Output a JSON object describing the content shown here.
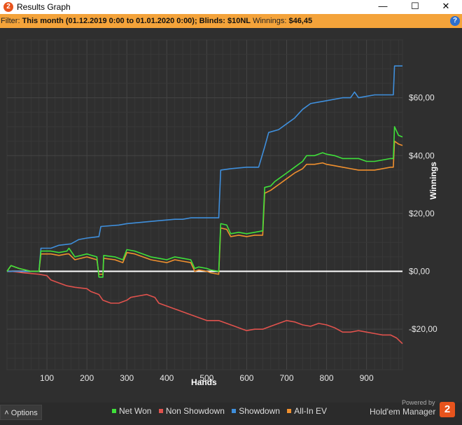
{
  "window": {
    "title": "Results Graph",
    "app_icon_label": "2",
    "minimize": "—",
    "maximize": "☐",
    "close": "✕"
  },
  "filter": {
    "label": "Filter:",
    "value": "This month (01.12.2019 0:00 to 01.01.2020 0:00); Blinds: $10NL",
    "winnings_label": "Winnings:",
    "winnings_value": "$46,45",
    "help": "?"
  },
  "footer": {
    "options_label": "Options",
    "powered_by": "Powered by",
    "brand_name": "Hold'em Manager",
    "brand_logo": "2"
  },
  "colors": {
    "net_won": "#3fe03a",
    "non_showdown": "#e0524d",
    "showdown": "#3f8fdc",
    "all_in_ev": "#f0902e",
    "zero_line": "#ffffff",
    "grid": "#3e3e3e",
    "background": "#2f2f2f"
  },
  "chart_data": {
    "type": "line",
    "xlabel": "Hands",
    "ylabel": "Winnings",
    "xlim": [
      0,
      990
    ],
    "ylim": [
      -34,
      80
    ],
    "x_ticks": [
      100,
      200,
      300,
      400,
      500,
      600,
      700,
      800,
      900
    ],
    "x_tick_labels": [
      "100",
      "200",
      "300",
      "400",
      "500",
      "600",
      "700",
      "800",
      "900"
    ],
    "y_ticks": [
      -20,
      0,
      20,
      40,
      60
    ],
    "y_tick_labels": [
      "-$20,00",
      "$0,00",
      "$20,00",
      "$40,00",
      "$60,00"
    ],
    "grid": true,
    "legend_position": "bottom",
    "series": [
      {
        "name": "Net Won",
        "color": "#3fe03a",
        "points": [
          [
            0,
            0
          ],
          [
            10,
            2
          ],
          [
            30,
            1
          ],
          [
            60,
            0
          ],
          [
            80,
            0
          ],
          [
            85,
            7
          ],
          [
            110,
            7
          ],
          [
            130,
            6.5
          ],
          [
            150,
            7
          ],
          [
            155,
            8
          ],
          [
            170,
            5
          ],
          [
            200,
            6
          ],
          [
            225,
            5
          ],
          [
            230,
            -2
          ],
          [
            240,
            -2
          ],
          [
            242,
            5.5
          ],
          [
            270,
            5
          ],
          [
            290,
            4
          ],
          [
            300,
            7.5
          ],
          [
            320,
            7
          ],
          [
            340,
            6
          ],
          [
            360,
            5
          ],
          [
            380,
            4.5
          ],
          [
            400,
            4
          ],
          [
            420,
            5
          ],
          [
            440,
            4.5
          ],
          [
            460,
            4
          ],
          [
            470,
            1
          ],
          [
            480,
            1.5
          ],
          [
            500,
            1
          ],
          [
            510,
            0.5
          ],
          [
            530,
            0
          ],
          [
            535,
            16.5
          ],
          [
            550,
            16
          ],
          [
            560,
            13
          ],
          [
            580,
            13.5
          ],
          [
            600,
            13
          ],
          [
            620,
            13.5
          ],
          [
            640,
            14
          ],
          [
            645,
            29
          ],
          [
            660,
            29.5
          ],
          [
            670,
            31
          ],
          [
            680,
            32
          ],
          [
            700,
            34
          ],
          [
            720,
            36
          ],
          [
            740,
            38
          ],
          [
            750,
            40
          ],
          [
            770,
            40
          ],
          [
            790,
            41
          ],
          [
            800,
            40.5
          ],
          [
            820,
            40
          ],
          [
            840,
            39
          ],
          [
            860,
            39
          ],
          [
            880,
            39
          ],
          [
            900,
            38
          ],
          [
            920,
            38
          ],
          [
            940,
            38.5
          ],
          [
            960,
            39
          ],
          [
            967,
            39
          ],
          [
            970,
            50
          ],
          [
            980,
            47
          ],
          [
            990,
            46.45
          ]
        ]
      },
      {
        "name": "Non Showdown",
        "color": "#e0524d",
        "points": [
          [
            0,
            0
          ],
          [
            10,
            0
          ],
          [
            40,
            -0.5
          ],
          [
            80,
            -1
          ],
          [
            100,
            -1.5
          ],
          [
            110,
            -3
          ],
          [
            130,
            -4
          ],
          [
            150,
            -5
          ],
          [
            170,
            -5.5
          ],
          [
            200,
            -6
          ],
          [
            210,
            -7
          ],
          [
            220,
            -7.5
          ],
          [
            230,
            -8
          ],
          [
            240,
            -10
          ],
          [
            260,
            -11
          ],
          [
            280,
            -11
          ],
          [
            300,
            -10
          ],
          [
            310,
            -9
          ],
          [
            330,
            -8.5
          ],
          [
            350,
            -8
          ],
          [
            370,
            -9
          ],
          [
            380,
            -11
          ],
          [
            400,
            -12
          ],
          [
            420,
            -13
          ],
          [
            440,
            -14
          ],
          [
            460,
            -15
          ],
          [
            480,
            -16
          ],
          [
            500,
            -17
          ],
          [
            530,
            -17
          ],
          [
            550,
            -18
          ],
          [
            570,
            -19
          ],
          [
            590,
            -20
          ],
          [
            600,
            -20.5
          ],
          [
            620,
            -20
          ],
          [
            640,
            -20
          ],
          [
            660,
            -19
          ],
          [
            680,
            -18
          ],
          [
            700,
            -17
          ],
          [
            720,
            -17.5
          ],
          [
            740,
            -18.5
          ],
          [
            760,
            -19
          ],
          [
            780,
            -18
          ],
          [
            800,
            -18.5
          ],
          [
            820,
            -19.5
          ],
          [
            840,
            -21
          ],
          [
            860,
            -21
          ],
          [
            880,
            -20.5
          ],
          [
            900,
            -21
          ],
          [
            920,
            -21.5
          ],
          [
            940,
            -22
          ],
          [
            960,
            -22
          ],
          [
            975,
            -23
          ],
          [
            990,
            -25
          ]
        ]
      },
      {
        "name": "Showdown",
        "color": "#3f8fdc",
        "points": [
          [
            0,
            0
          ],
          [
            80,
            0
          ],
          [
            85,
            8
          ],
          [
            110,
            8
          ],
          [
            130,
            9
          ],
          [
            160,
            9.5
          ],
          [
            180,
            11
          ],
          [
            200,
            11.5
          ],
          [
            230,
            12
          ],
          [
            235,
            15.5
          ],
          [
            280,
            16
          ],
          [
            300,
            16.5
          ],
          [
            340,
            17
          ],
          [
            380,
            17.5
          ],
          [
            420,
            18
          ],
          [
            440,
            18
          ],
          [
            460,
            18.5
          ],
          [
            480,
            18.5
          ],
          [
            500,
            18.5
          ],
          [
            530,
            18.5
          ],
          [
            535,
            35
          ],
          [
            560,
            35.5
          ],
          [
            600,
            36
          ],
          [
            630,
            36
          ],
          [
            645,
            43
          ],
          [
            655,
            48
          ],
          [
            680,
            49
          ],
          [
            700,
            51
          ],
          [
            720,
            53
          ],
          [
            740,
            56
          ],
          [
            760,
            58
          ],
          [
            780,
            58.5
          ],
          [
            800,
            59
          ],
          [
            840,
            60
          ],
          [
            860,
            60
          ],
          [
            870,
            62
          ],
          [
            880,
            60
          ],
          [
            900,
            60.5
          ],
          [
            920,
            61
          ],
          [
            960,
            61
          ],
          [
            967,
            61
          ],
          [
            970,
            71
          ],
          [
            990,
            71
          ]
        ]
      },
      {
        "name": "All-In EV",
        "color": "#f0902e",
        "points": [
          [
            0,
            0
          ],
          [
            10,
            2
          ],
          [
            30,
            1
          ],
          [
            60,
            0
          ],
          [
            80,
            0
          ],
          [
            85,
            6
          ],
          [
            110,
            6
          ],
          [
            130,
            5.5
          ],
          [
            150,
            6
          ],
          [
            155,
            6
          ],
          [
            170,
            4
          ],
          [
            200,
            5
          ],
          [
            225,
            4
          ],
          [
            230,
            -1
          ],
          [
            240,
            -1
          ],
          [
            242,
            4.5
          ],
          [
            270,
            4
          ],
          [
            290,
            3
          ],
          [
            300,
            6.5
          ],
          [
            320,
            6
          ],
          [
            340,
            5
          ],
          [
            360,
            4
          ],
          [
            380,
            3.5
          ],
          [
            400,
            3
          ],
          [
            420,
            4
          ],
          [
            440,
            3.5
          ],
          [
            460,
            3
          ],
          [
            470,
            0
          ],
          [
            480,
            0.5
          ],
          [
            500,
            0
          ],
          [
            510,
            -0.5
          ],
          [
            530,
            -1
          ],
          [
            535,
            15
          ],
          [
            550,
            14.5
          ],
          [
            560,
            12
          ],
          [
            580,
            12.5
          ],
          [
            600,
            12
          ],
          [
            620,
            12.5
          ],
          [
            640,
            12.5
          ],
          [
            645,
            27
          ],
          [
            660,
            28
          ],
          [
            670,
            29
          ],
          [
            680,
            30
          ],
          [
            700,
            32
          ],
          [
            720,
            34
          ],
          [
            740,
            35.5
          ],
          [
            750,
            37
          ],
          [
            770,
            37
          ],
          [
            790,
            37.5
          ],
          [
            800,
            37
          ],
          [
            820,
            36.5
          ],
          [
            840,
            36
          ],
          [
            860,
            35.5
          ],
          [
            880,
            35
          ],
          [
            900,
            35
          ],
          [
            920,
            35
          ],
          [
            940,
            35.5
          ],
          [
            960,
            36
          ],
          [
            967,
            36
          ],
          [
            970,
            45
          ],
          [
            980,
            44
          ],
          [
            990,
            43.5
          ]
        ]
      }
    ]
  }
}
